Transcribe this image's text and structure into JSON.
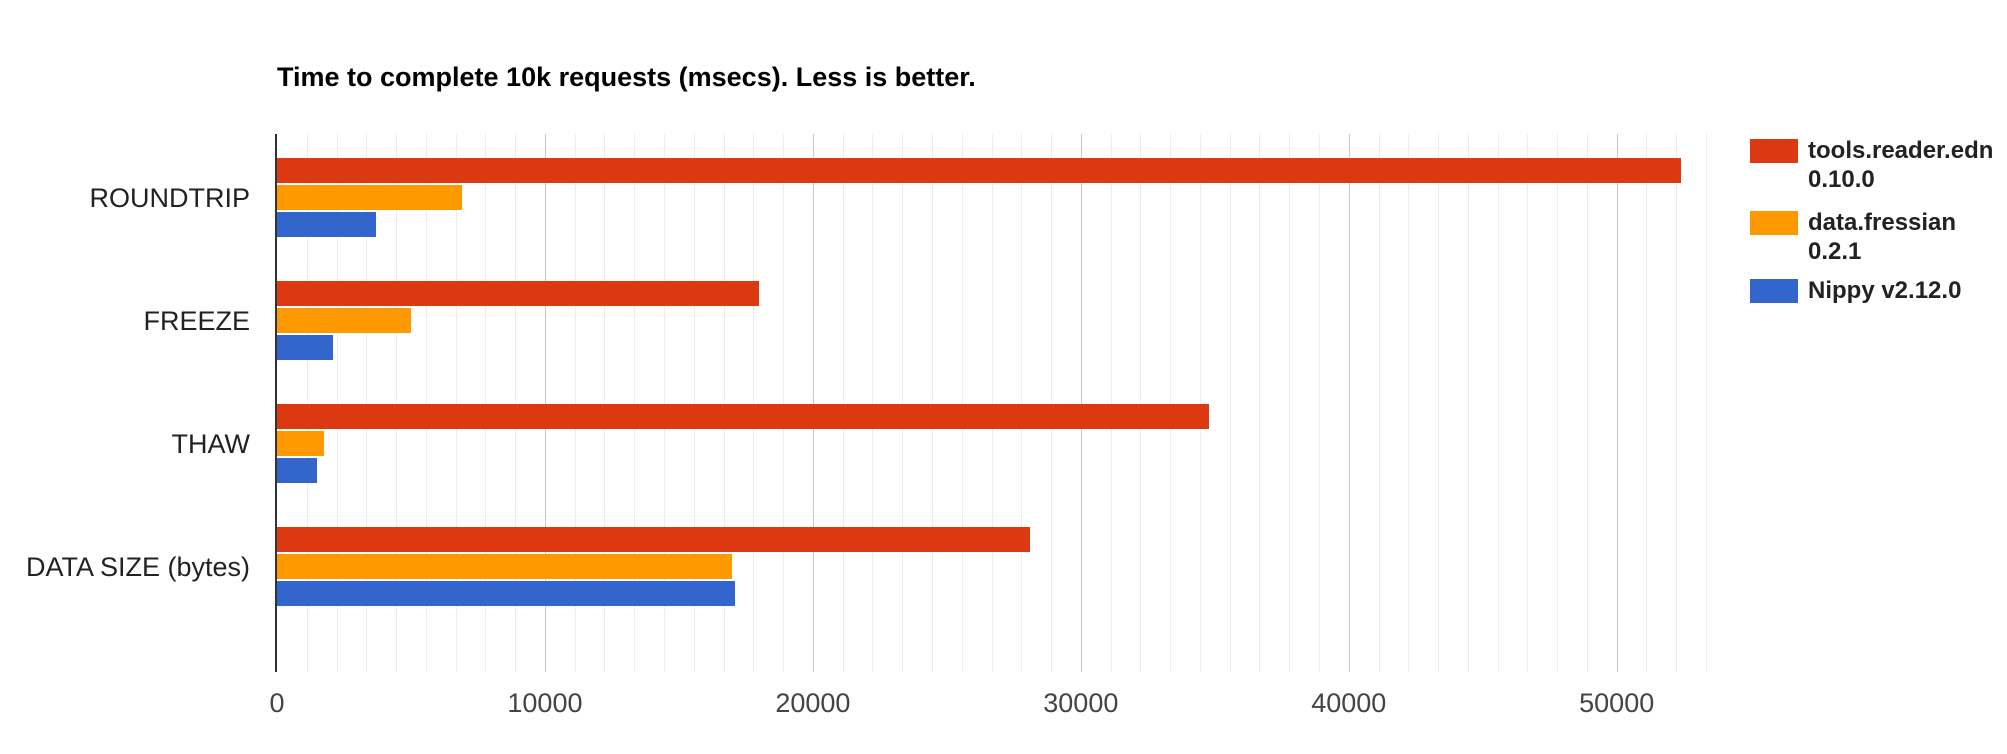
{
  "chart_data": {
    "type": "bar",
    "orientation": "horizontal",
    "title": "Time to complete 10k requests (msecs). Less is better.",
    "categories": [
      "ROUNDTRIP",
      "FREEZE",
      "THAW",
      "DATA SIZE (bytes)"
    ],
    "series": [
      {
        "name": "tools.reader.edn 0.10.0",
        "color": "#dc3912",
        "values": [
          52400,
          18000,
          34800,
          28100
        ]
      },
      {
        "name": "data.fressian 0.2.1",
        "color": "#ff9900",
        "values": [
          6900,
          5000,
          1750,
          17000
        ]
      },
      {
        "name": "Nippy v2.12.0",
        "color": "#3366cc",
        "values": [
          3700,
          2100,
          1500,
          17100
        ]
      }
    ],
    "xlim": [
      0,
      53333
    ],
    "x_ticks": [
      0,
      10000,
      20000,
      30000,
      40000,
      50000
    ],
    "grid": true,
    "legend_position": "right"
  },
  "legend": {
    "items": [
      {
        "color": "#dc3912",
        "lines": [
          "tools.reader.edn",
          "0.10.0"
        ]
      },
      {
        "color": "#ff9900",
        "lines": [
          "data.fressian",
          "0.2.1"
        ]
      },
      {
        "color": "#3366cc",
        "lines": [
          "Nippy v2.12.0"
        ]
      }
    ]
  }
}
